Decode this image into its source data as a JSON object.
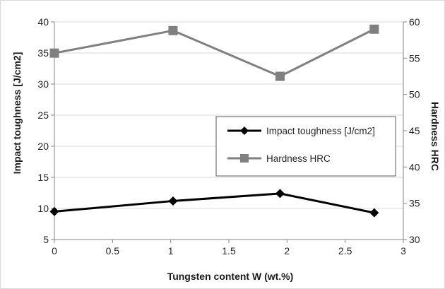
{
  "chart_data": {
    "type": "line",
    "x_axis": {
      "label": "Tungsten content W (wt.%)",
      "range": [
        0,
        3
      ],
      "ticks": [
        0,
        0.5,
        1,
        1.5,
        2,
        2.5,
        3
      ],
      "tick_labels": [
        "0",
        "0.5",
        "1",
        "1.5",
        "2",
        "2.5",
        "3"
      ]
    },
    "y_axis_left": {
      "label": "Impact toughness [J/cm2]",
      "range": [
        5,
        40
      ],
      "ticks": [
        5,
        10,
        15,
        20,
        25,
        30,
        35,
        40
      ],
      "tick_labels": [
        "5",
        "10",
        "15",
        "20",
        "25",
        "30",
        "35",
        "40"
      ]
    },
    "y_axis_right": {
      "label": "Hardness HRC",
      "range": [
        30,
        60
      ],
      "ticks": [
        30,
        35,
        40,
        45,
        50,
        55,
        60
      ],
      "tick_labels": [
        "30",
        "35",
        "40",
        "45",
        "50",
        "55",
        "60"
      ]
    },
    "grid": "horizontal",
    "legend": {
      "placement": "center-right",
      "entries": [
        "Impact toughness [J/cm2]",
        "Hardness HRC"
      ]
    },
    "series": [
      {
        "name": "Impact toughness [J/cm2]",
        "axis": "left",
        "marker": "diamond",
        "color": "#000000",
        "x": [
          0,
          1.02,
          1.94,
          2.75
        ],
        "y": [
          9.5,
          11.2,
          12.4,
          9.3
        ]
      },
      {
        "name": "Hardness HRC",
        "axis": "right",
        "marker": "square",
        "color": "#808080",
        "x": [
          0,
          1.02,
          1.94,
          2.75
        ],
        "y": [
          55.7,
          58.8,
          52.5,
          59.0
        ]
      }
    ]
  }
}
